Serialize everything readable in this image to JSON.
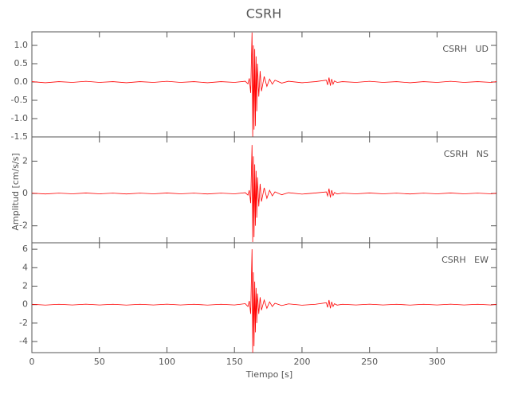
{
  "figure": {
    "title": "CSRH",
    "xlabel": "Tiempo [s]",
    "ylabel": "Amplitud [cm/s/s]"
  },
  "chart_data": [
    {
      "type": "line",
      "label": "CSRH   UD",
      "x": [
        0,
        10,
        20,
        30,
        40,
        50,
        60,
        70,
        80,
        90,
        100,
        110,
        120,
        130,
        140,
        150,
        158,
        160,
        161,
        162,
        163,
        163.5,
        164,
        164.5,
        165,
        165.5,
        166,
        166.5,
        167,
        168,
        169,
        170,
        172,
        174,
        176,
        178,
        180,
        185,
        190,
        200,
        210,
        218,
        219,
        220,
        221,
        222,
        223,
        224,
        226,
        230,
        240,
        250,
        260,
        270,
        280,
        290,
        300,
        310,
        320,
        330,
        340,
        344
      ],
      "series": [
        {
          "name": "UD",
          "color": "#ff0000",
          "values": [
            0.01,
            -0.02,
            0.01,
            -0.01,
            0.02,
            -0.01,
            0.01,
            -0.02,
            0.01,
            -0.01,
            0.02,
            -0.01,
            0.01,
            -0.02,
            0.01,
            -0.01,
            0.02,
            -0.05,
            0.1,
            -0.3,
            1.35,
            -1.5,
            1.0,
            -1.3,
            0.9,
            -1.2,
            0.7,
            -0.8,
            0.5,
            -0.4,
            0.3,
            -0.25,
            0.15,
            -0.12,
            0.08,
            -0.06,
            0.05,
            -0.03,
            0.02,
            -0.02,
            0.01,
            0.05,
            -0.08,
            0.12,
            -0.1,
            0.08,
            -0.06,
            0.03,
            -0.01,
            0.01,
            -0.01,
            0.02,
            -0.01,
            0.01,
            -0.02,
            0.01,
            -0.01,
            0.02,
            -0.01,
            0.01,
            -0.01,
            0.01
          ]
        }
      ],
      "xlim": [
        0,
        344
      ],
      "ylim": [
        -1.5,
        1.37
      ],
      "yticks": [
        -1.5,
        {
          "value": -1,
          "label": "-1.0"
        },
        -0.5,
        {
          "value": 0,
          "label": "0.0"
        },
        0.5,
        {
          "value": 1,
          "label": "1.0"
        }
      ]
    },
    {
      "type": "line",
      "label": "CSRH   NS",
      "x": [
        0,
        10,
        20,
        30,
        40,
        50,
        60,
        70,
        80,
        90,
        100,
        110,
        120,
        130,
        140,
        150,
        158,
        160,
        161,
        162,
        163,
        163.5,
        164,
        164.5,
        165,
        165.5,
        166,
        166.5,
        167,
        168,
        169,
        170,
        172,
        174,
        176,
        178,
        180,
        185,
        190,
        200,
        210,
        218,
        219,
        220,
        221,
        222,
        223,
        224,
        226,
        230,
        240,
        250,
        260,
        270,
        280,
        290,
        300,
        310,
        320,
        330,
        340,
        344
      ],
      "series": [
        {
          "name": "NS",
          "color": "#ff0000",
          "values": [
            0.02,
            -0.03,
            0.02,
            -0.02,
            0.03,
            -0.02,
            0.02,
            -0.03,
            0.02,
            -0.02,
            0.03,
            -0.02,
            0.02,
            -0.03,
            0.02,
            -0.02,
            0.05,
            -0.1,
            0.2,
            -0.6,
            3.0,
            -3.0,
            2.3,
            -2.7,
            1.8,
            -2.0,
            1.4,
            -1.5,
            1.0,
            -0.8,
            0.6,
            -0.5,
            0.35,
            -0.3,
            0.2,
            -0.15,
            0.1,
            -0.08,
            0.05,
            -0.04,
            0.03,
            0.1,
            -0.15,
            0.3,
            -0.25,
            0.2,
            -0.12,
            0.06,
            -0.03,
            0.02,
            -0.02,
            0.03,
            -0.02,
            0.02,
            -0.03,
            0.02,
            -0.02,
            0.03,
            -0.02,
            0.02,
            -0.02,
            0.02
          ]
        }
      ],
      "xlim": [
        0,
        344
      ],
      "ylim": [
        -3.05,
        3.5
      ],
      "yticks": [
        -2,
        0,
        2
      ]
    },
    {
      "type": "line",
      "label": "CSRH   EW",
      "x": [
        0,
        10,
        20,
        30,
        40,
        50,
        60,
        70,
        80,
        90,
        100,
        110,
        120,
        130,
        140,
        150,
        158,
        160,
        161,
        162,
        163,
        163.5,
        164,
        164.5,
        165,
        165.5,
        166,
        166.5,
        167,
        168,
        169,
        170,
        172,
        174,
        176,
        178,
        180,
        185,
        190,
        200,
        210,
        218,
        219,
        220,
        221,
        222,
        223,
        224,
        226,
        230,
        240,
        250,
        260,
        270,
        280,
        290,
        300,
        310,
        320,
        330,
        340,
        344
      ],
      "series": [
        {
          "name": "EW",
          "color": "#ff0000",
          "values": [
            0.04,
            -0.05,
            0.04,
            -0.04,
            0.05,
            -0.04,
            0.04,
            -0.05,
            0.04,
            -0.04,
            0.05,
            -0.04,
            0.04,
            -0.05,
            0.04,
            -0.04,
            0.1,
            -0.2,
            0.4,
            -1.0,
            6.0,
            -5.2,
            3.5,
            -4.5,
            2.5,
            -3.0,
            1.8,
            -2.0,
            1.2,
            -1.0,
            0.8,
            -0.6,
            0.5,
            -0.4,
            0.3,
            -0.2,
            0.15,
            -0.1,
            0.08,
            -0.06,
            0.04,
            0.2,
            -0.3,
            0.5,
            -0.4,
            0.3,
            -0.2,
            0.1,
            -0.05,
            0.04,
            -0.04,
            0.05,
            -0.04,
            0.04,
            -0.05,
            0.04,
            -0.04,
            0.05,
            -0.04,
            0.04,
            -0.04,
            0.04
          ]
        }
      ],
      "xlim": [
        0,
        344
      ],
      "ylim": [
        -5.2,
        6.7
      ],
      "yticks": [
        -4,
        -2,
        0,
        2,
        4,
        6
      ],
      "xticks": [
        0,
        50,
        100,
        150,
        200,
        250,
        300
      ]
    }
  ]
}
